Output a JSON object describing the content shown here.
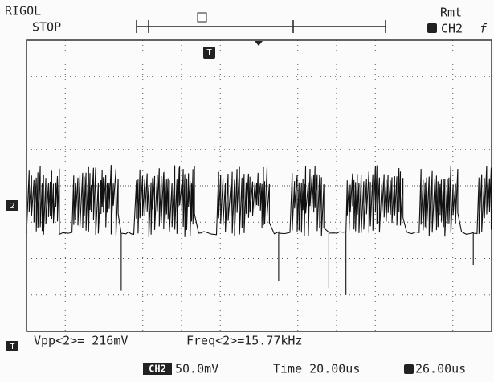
{
  "header": {
    "brand": "RIGOL",
    "status": "STOP",
    "remote": "Rmt",
    "trigger_source": "CH2",
    "trigger_edge": "f"
  },
  "markers": {
    "trigger_position": "T",
    "channel": "2",
    "trigger_level": "T"
  },
  "measurements": {
    "vpp": "Vpp<2>= 216mV",
    "freq": "Freq<2>=15.77kHz"
  },
  "footer": {
    "channel": "CH2",
    "volts_per_div": "50.0mV",
    "timebase": "Time 20.00us",
    "trigger_offset": "26.00us"
  }
}
